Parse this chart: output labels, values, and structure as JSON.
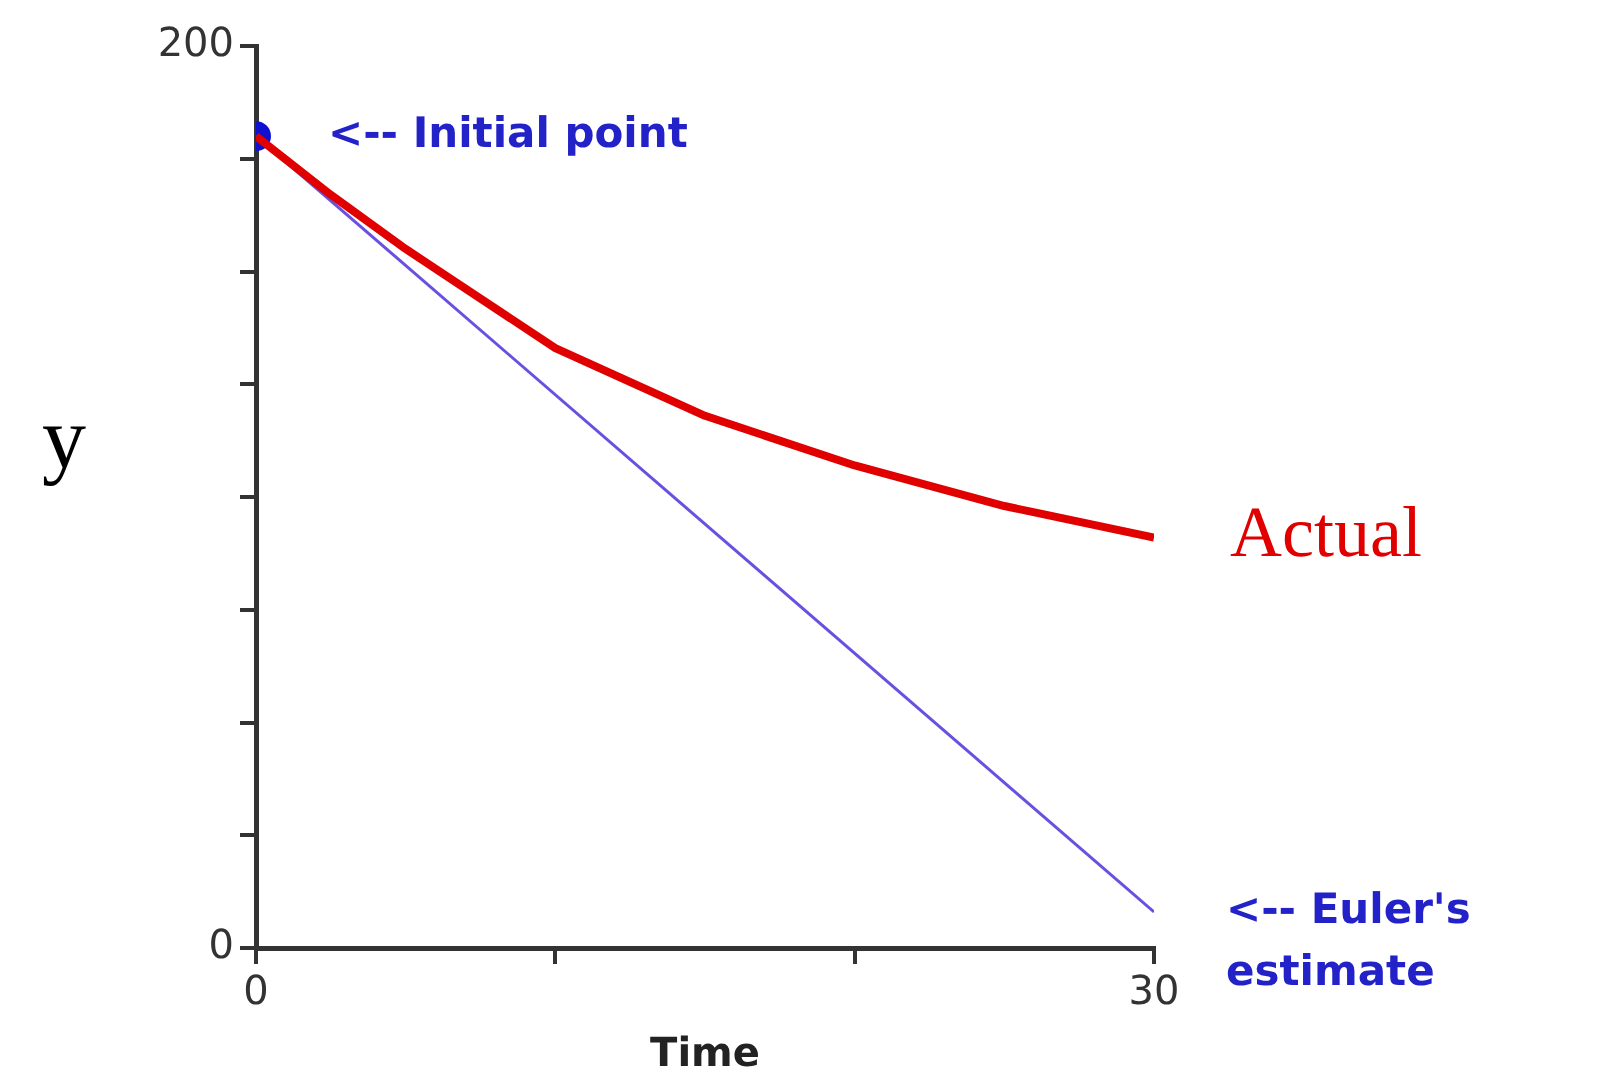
{
  "chart_data": {
    "type": "line",
    "xlabel": "Time",
    "ylabel": "y",
    "xlim": [
      0,
      30
    ],
    "ylim": [
      0,
      200
    ],
    "xticks": [
      0,
      {
        "value": 10,
        "label": null
      },
      {
        "value": 20,
        "label": null
      },
      30
    ],
    "yticks": [
      0,
      {
        "value": 25,
        "label": null
      },
      {
        "value": 50,
        "label": null
      },
      {
        "value": 75,
        "label": null
      },
      {
        "value": 100,
        "label": null
      },
      {
        "value": 125,
        "label": null
      },
      {
        "value": 150,
        "label": null
      },
      {
        "value": 175,
        "label": null
      },
      200
    ],
    "grid": false,
    "legend": false,
    "marker": "none",
    "line_style": "solid",
    "series": [
      {
        "name": "Actual",
        "color": "#e00000",
        "x": [
          0,
          2.5,
          5,
          10,
          15,
          20,
          25,
          30
        ],
        "values": [
          180,
          167,
          155,
          133,
          118,
          107,
          98,
          91
        ]
      },
      {
        "type": "line",
        "color": "#6a50e0",
        "x": [
          0,
          30
        ],
        "values": [
          180,
          8
        ]
      },
      {
        "type": "scatter",
        "marker": "circle",
        "color": "#1010d0",
        "x": [
          0
        ],
        "values": [
          180
        ]
      }
    ],
    "annotations": [
      {
        "text": "<-- Initial point",
        "x": 0,
        "y": 180
      },
      {
        "text": "<-- Euler's estimate",
        "x": 30,
        "y": 8
      }
    ]
  }
}
